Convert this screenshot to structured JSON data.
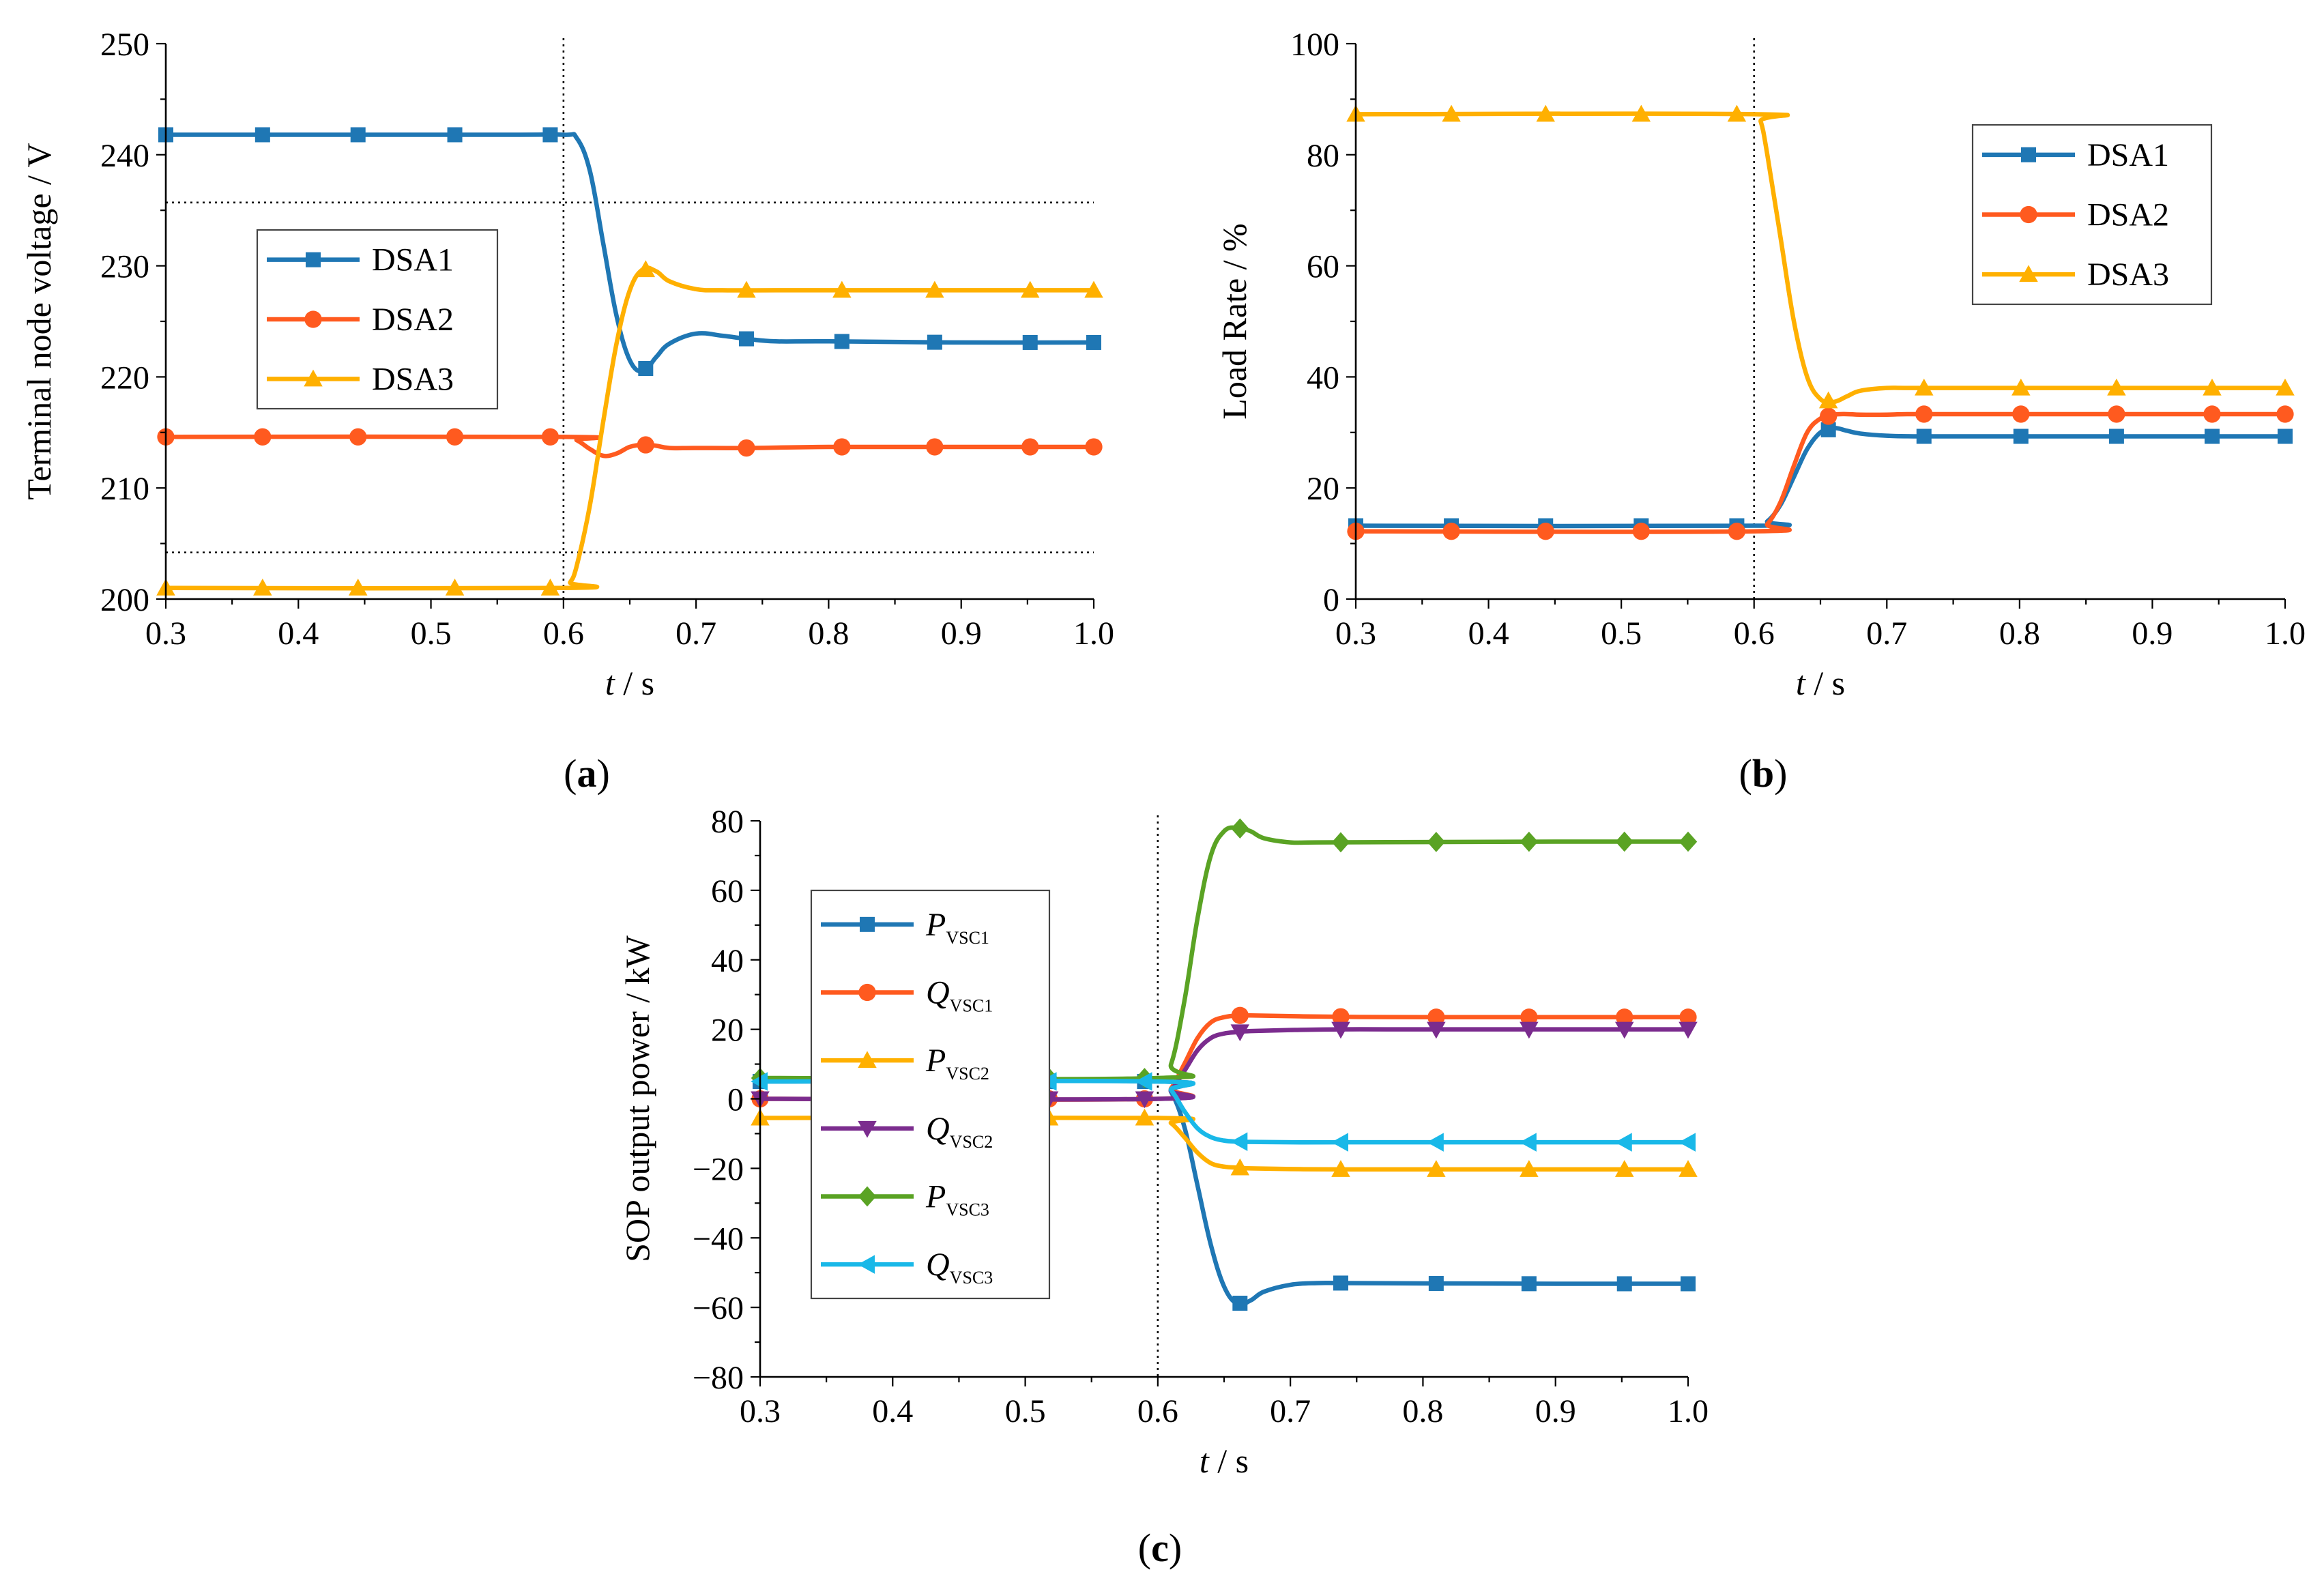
{
  "chart_data": [
    {
      "id": "a",
      "type": "line",
      "caption": "a",
      "xlabel_italic": "t",
      "xlabel_rest": " / s",
      "ylabel": "Terminal node voltage / V",
      "xlim": [
        0.3,
        1.0
      ],
      "ylim": [
        200,
        250
      ],
      "xticks": [
        0.3,
        0.4,
        0.5,
        0.6,
        0.7,
        0.8,
        0.9,
        1.0
      ],
      "xtick_labels": [
        "0.3",
        "0.4",
        "0.5",
        "0.6",
        "0.7",
        "0.8",
        "0.9",
        "1.0"
      ],
      "yticks": [
        200,
        210,
        220,
        230,
        240,
        250
      ],
      "ytick_labels": [
        "200",
        "210",
        "220",
        "230",
        "240",
        "250"
      ],
      "vline_x": 0.6,
      "hlines_y": [
        235.7,
        204.2
      ],
      "legend_position": "middle-left",
      "series": [
        {
          "name": "DSA1",
          "color": "#1f77b4",
          "marker": "square",
          "x": [
            0.3,
            0.55,
            0.6,
            0.61,
            0.62,
            0.63,
            0.64,
            0.65,
            0.66,
            0.67,
            0.68,
            0.7,
            0.72,
            0.74,
            0.76,
            0.8,
            0.9,
            1.0
          ],
          "y": [
            241.8,
            241.8,
            241.8,
            241.5,
            238.5,
            232.0,
            225.5,
            221.5,
            220.5,
            221.8,
            223.0,
            223.9,
            223.7,
            223.4,
            223.2,
            223.2,
            223.1,
            223.1
          ],
          "marker_x": [
            0.3,
            0.373,
            0.445,
            0.518,
            0.59,
            0.662,
            0.738,
            0.81,
            0.88,
            0.952,
            1.0
          ]
        },
        {
          "name": "DSA2",
          "color": "#ff5a1f",
          "marker": "circle",
          "x": [
            0.3,
            0.6,
            0.61,
            0.62,
            0.63,
            0.64,
            0.65,
            0.66,
            0.67,
            0.68,
            0.7,
            0.74,
            0.8,
            0.9,
            1.0
          ],
          "y": [
            214.6,
            214.6,
            214.3,
            213.5,
            212.9,
            213.1,
            213.7,
            213.9,
            213.8,
            213.6,
            213.6,
            213.6,
            213.7,
            213.7,
            213.7
          ],
          "marker_x": [
            0.3,
            0.373,
            0.445,
            0.518,
            0.59,
            0.662,
            0.738,
            0.81,
            0.88,
            0.952,
            1.0
          ]
        },
        {
          "name": "DSA3",
          "color": "#ffb000",
          "marker": "triangle",
          "x": [
            0.3,
            0.6,
            0.605,
            0.61,
            0.62,
            0.63,
            0.64,
            0.65,
            0.66,
            0.67,
            0.68,
            0.7,
            0.72,
            0.76,
            0.8,
            0.9,
            1.0
          ],
          "y": [
            201.0,
            201.0,
            201.5,
            203.0,
            208.5,
            216.0,
            223.0,
            227.8,
            229.7,
            229.5,
            228.6,
            227.9,
            227.8,
            227.8,
            227.8,
            227.8,
            227.8
          ],
          "marker_x": [
            0.3,
            0.373,
            0.445,
            0.518,
            0.59,
            0.662,
            0.738,
            0.81,
            0.88,
            0.952,
            1.0
          ]
        }
      ]
    },
    {
      "id": "b",
      "type": "line",
      "caption": "b",
      "xlabel_italic": "t",
      "xlabel_rest": " / s",
      "ylabel": "Load Rate / %",
      "xlim": [
        0.3,
        1.0
      ],
      "ylim": [
        0,
        100
      ],
      "xticks": [
        0.3,
        0.4,
        0.5,
        0.6,
        0.7,
        0.8,
        0.9,
        1.0
      ],
      "xtick_labels": [
        "0.3",
        "0.4",
        "0.5",
        "0.6",
        "0.7",
        "0.8",
        "0.9",
        "1.0"
      ],
      "yticks": [
        0,
        20,
        40,
        60,
        80,
        100
      ],
      "ytick_labels": [
        "0",
        "20",
        "40",
        "60",
        "80",
        "100"
      ],
      "vline_x": 0.6,
      "hlines_y": [],
      "legend_position": "top-right",
      "series": [
        {
          "name": "DSA1",
          "color": "#1f77b4",
          "marker": "square",
          "x": [
            0.3,
            0.6,
            0.61,
            0.62,
            0.63,
            0.64,
            0.65,
            0.66,
            0.67,
            0.68,
            0.7,
            0.72,
            0.74,
            0.8,
            0.9,
            1.0
          ],
          "y": [
            13.2,
            13.2,
            14.0,
            17.0,
            22.0,
            27.0,
            30.0,
            30.8,
            30.3,
            29.8,
            29.4,
            29.3,
            29.3,
            29.3,
            29.3,
            29.3
          ],
          "marker_x": [
            0.3,
            0.372,
            0.443,
            0.515,
            0.587,
            0.656,
            0.728,
            0.801,
            0.873,
            0.945,
            1.0
          ]
        },
        {
          "name": "DSA2",
          "color": "#ff5a1f",
          "marker": "circle",
          "x": [
            0.3,
            0.6,
            0.61,
            0.62,
            0.63,
            0.64,
            0.65,
            0.66,
            0.67,
            0.68,
            0.7,
            0.72,
            0.8,
            0.9,
            1.0
          ],
          "y": [
            12.2,
            12.2,
            13.5,
            17.5,
            24.0,
            30.0,
            32.5,
            33.2,
            33.3,
            33.2,
            33.2,
            33.3,
            33.3,
            33.3,
            33.3
          ],
          "marker_x": [
            0.3,
            0.372,
            0.443,
            0.515,
            0.587,
            0.656,
            0.728,
            0.801,
            0.873,
            0.945,
            1.0
          ]
        },
        {
          "name": "DSA3",
          "color": "#ffb000",
          "marker": "triangle",
          "x": [
            0.3,
            0.6,
            0.605,
            0.61,
            0.62,
            0.63,
            0.64,
            0.65,
            0.66,
            0.67,
            0.68,
            0.7,
            0.72,
            0.8,
            0.9,
            1.0
          ],
          "y": [
            87.3,
            87.3,
            86.0,
            80.0,
            65.0,
            50.0,
            40.0,
            36.0,
            35.5,
            36.5,
            37.5,
            38.0,
            38.0,
            38.0,
            38.0,
            38.0
          ],
          "marker_x": [
            0.3,
            0.372,
            0.443,
            0.515,
            0.587,
            0.656,
            0.728,
            0.801,
            0.873,
            0.945,
            1.0
          ]
        }
      ]
    },
    {
      "id": "c",
      "type": "line",
      "caption": "c",
      "xlabel_italic": "t",
      "xlabel_rest": " / s",
      "ylabel": "SOP output power / kW",
      "xlim": [
        0.3,
        1.0
      ],
      "ylim": [
        -80,
        80
      ],
      "xticks": [
        0.3,
        0.4,
        0.5,
        0.6,
        0.7,
        0.8,
        0.9,
        1.0
      ],
      "xtick_labels": [
        "0.3",
        "0.4",
        "0.5",
        "0.6",
        "0.7",
        "0.8",
        "0.9",
        "1.0"
      ],
      "yticks": [
        -80,
        -60,
        -40,
        -20,
        0,
        20,
        40,
        60,
        80
      ],
      "ytick_labels": [
        "−80",
        "−60",
        "−40",
        "−20",
        "0",
        "20",
        "40",
        "60",
        "80"
      ],
      "vline_x": 0.6,
      "hlines_y": [],
      "legend_position": "middle-left",
      "series": [
        {
          "name": "P_VSC1",
          "label_main": "P",
          "label_sub": "VSC1",
          "color": "#1f77b4",
          "marker": "square",
          "x": [
            0.3,
            0.6,
            0.61,
            0.62,
            0.63,
            0.64,
            0.65,
            0.66,
            0.67,
            0.68,
            0.7,
            0.72,
            0.74,
            0.8,
            0.9,
            1.0
          ],
          "y": [
            5.0,
            5.0,
            2.0,
            -8.0,
            -25.0,
            -42.0,
            -54.0,
            -59.0,
            -58.0,
            -55.5,
            -53.5,
            -53.0,
            -53.0,
            -53.1,
            -53.2,
            -53.2
          ],
          "marker_x": [
            0.3,
            0.373,
            0.445,
            0.518,
            0.59,
            0.662,
            0.738,
            0.81,
            0.88,
            0.952,
            1.0
          ]
        },
        {
          "name": "Q_VSC1",
          "label_main": "Q",
          "label_sub": "VSC1",
          "color": "#ff5a1f",
          "marker": "circle",
          "x": [
            0.3,
            0.6,
            0.61,
            0.62,
            0.63,
            0.64,
            0.65,
            0.66,
            0.67,
            0.7,
            0.74,
            0.8,
            0.9,
            1.0
          ],
          "y": [
            0.0,
            0.0,
            3.0,
            10.0,
            17.5,
            22.0,
            23.5,
            24.0,
            24.0,
            23.8,
            23.6,
            23.5,
            23.5,
            23.5
          ],
          "marker_x": [
            0.3,
            0.373,
            0.445,
            0.518,
            0.59,
            0.662,
            0.738,
            0.81,
            0.88,
            0.952,
            1.0
          ]
        },
        {
          "name": "P_VSC2",
          "label_main": "P",
          "label_sub": "VSC2",
          "color": "#ffb000",
          "marker": "triangle",
          "x": [
            0.3,
            0.6,
            0.61,
            0.62,
            0.63,
            0.64,
            0.65,
            0.66,
            0.67,
            0.7,
            0.74,
            0.8,
            0.9,
            1.0
          ],
          "y": [
            -5.5,
            -5.5,
            -7.0,
            -11.0,
            -15.5,
            -18.5,
            -19.5,
            -19.8,
            -20.0,
            -20.2,
            -20.3,
            -20.3,
            -20.3,
            -20.3
          ],
          "marker_x": [
            0.3,
            0.373,
            0.445,
            0.518,
            0.59,
            0.662,
            0.738,
            0.81,
            0.88,
            0.952,
            1.0
          ]
        },
        {
          "name": "Q_VSC2",
          "label_main": "Q",
          "label_sub": "VSC2",
          "color": "#7b2c8e",
          "marker": "triangle-down",
          "x": [
            0.3,
            0.6,
            0.61,
            0.62,
            0.63,
            0.64,
            0.65,
            0.66,
            0.67,
            0.7,
            0.74,
            0.8,
            0.9,
            1.0
          ],
          "y": [
            0.0,
            0.0,
            2.5,
            8.0,
            14.0,
            17.5,
            18.8,
            19.2,
            19.5,
            19.8,
            20.0,
            20.0,
            20.0,
            20.0
          ],
          "marker_x": [
            0.3,
            0.373,
            0.445,
            0.518,
            0.59,
            0.662,
            0.738,
            0.81,
            0.88,
            0.952,
            1.0
          ]
        },
        {
          "name": "P_VSC3",
          "label_main": "P",
          "label_sub": "VSC3",
          "color": "#5aa324",
          "marker": "diamond",
          "x": [
            0.3,
            0.6,
            0.61,
            0.62,
            0.63,
            0.64,
            0.65,
            0.66,
            0.67,
            0.68,
            0.7,
            0.72,
            0.8,
            0.9,
            1.0
          ],
          "y": [
            6.0,
            6.0,
            10.0,
            28.0,
            52.0,
            70.0,
            77.0,
            78.0,
            77.0,
            75.0,
            73.8,
            73.8,
            73.9,
            74.0,
            74.0
          ],
          "marker_x": [
            0.3,
            0.373,
            0.445,
            0.518,
            0.59,
            0.662,
            0.738,
            0.81,
            0.88,
            0.952,
            1.0
          ]
        },
        {
          "name": "Q_VSC3",
          "label_main": "Q",
          "label_sub": "VSC3",
          "color": "#19b8e8",
          "marker": "triangle-left",
          "x": [
            0.3,
            0.6,
            0.61,
            0.62,
            0.63,
            0.64,
            0.65,
            0.66,
            0.67,
            0.7,
            0.74,
            0.8,
            0.9,
            1.0
          ],
          "y": [
            5.0,
            5.0,
            2.5,
            -3.5,
            -8.5,
            -11.0,
            -12.0,
            -12.3,
            -12.4,
            -12.5,
            -12.5,
            -12.5,
            -12.5,
            -12.5
          ],
          "marker_x": [
            0.3,
            0.373,
            0.445,
            0.518,
            0.59,
            0.662,
            0.738,
            0.81,
            0.88,
            0.952,
            1.0
          ]
        }
      ]
    }
  ]
}
